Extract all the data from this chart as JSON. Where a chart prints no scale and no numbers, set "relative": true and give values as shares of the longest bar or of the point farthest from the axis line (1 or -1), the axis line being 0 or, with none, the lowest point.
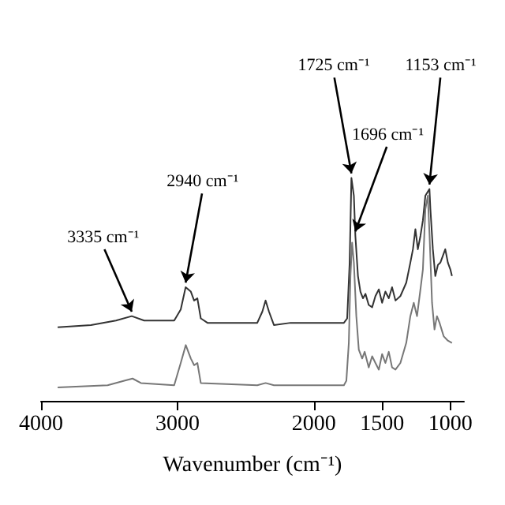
{
  "chart_data": {
    "type": "line",
    "relative": true,
    "xlabel": "Wavenumber (cm⁻¹)",
    "xlim": [
      4000,
      900
    ],
    "xticks": [
      4000,
      3000,
      2000,
      1500,
      1000
    ],
    "tick_labels": "x",
    "grid": false,
    "marker": "none",
    "line_style": "solid",
    "annotations": [
      {
        "text": "3335 cm⁻¹",
        "x": 3335,
        "y": 0.38
      },
      {
        "text": "2940 cm⁻¹",
        "x": 2940,
        "y": 0.51
      },
      {
        "text": "1725 cm⁻¹",
        "x": 1725,
        "y": 1
      },
      {
        "text": "1696 cm⁻¹",
        "x": 1696,
        "y": 0.74
      },
      {
        "text": "1153 cm⁻¹",
        "x": 1153,
        "y": 0.95
      }
    ],
    "series": [
      {
        "color": "#333333",
        "x": [
          3878,
          3634,
          3451,
          3335,
          3244,
          3024,
          2976,
          2940,
          2902,
          2878,
          2854,
          2829,
          2780,
          2415,
          2378,
          2354,
          2329,
          2293,
          2171,
          1780,
          1756,
          1738,
          1725,
          1707,
          1696,
          1677,
          1659,
          1640,
          1622,
          1598,
          1573,
          1549,
          1524,
          1500,
          1476,
          1451,
          1427,
          1402,
          1366,
          1323,
          1293,
          1274,
          1256,
          1238,
          1219,
          1201,
          1183,
          1153,
          1146,
          1128,
          1110,
          1091,
          1073,
          1055,
          1037,
          1018,
          1000,
          988
        ],
        "values": [
          0.33,
          0.34,
          0.36,
          0.38,
          0.36,
          0.36,
          0.41,
          0.51,
          0.49,
          0.45,
          0.46,
          0.37,
          0.35,
          0.35,
          0.4,
          0.45,
          0.4,
          0.34,
          0.35,
          0.35,
          0.37,
          0.62,
          1,
          0.92,
          0.74,
          0.56,
          0.49,
          0.46,
          0.48,
          0.43,
          0.42,
          0.47,
          0.5,
          0.44,
          0.49,
          0.46,
          0.51,
          0.45,
          0.47,
          0.53,
          0.62,
          0.68,
          0.77,
          0.68,
          0.74,
          0.81,
          0.92,
          0.95,
          0.86,
          0.68,
          0.56,
          0.61,
          0.62,
          0.65,
          0.68,
          0.62,
          0.59,
          0.56
        ]
      },
      {
        "color": "#777777",
        "x": [
          3878,
          3512,
          3390,
          3329,
          3268,
          3024,
          2976,
          2939,
          2902,
          2878,
          2854,
          2829,
          2415,
          2354,
          2293,
          1780,
          1762,
          1744,
          1732,
          1720,
          1707,
          1689,
          1671,
          1646,
          1628,
          1598,
          1573,
          1549,
          1524,
          1500,
          1476,
          1451,
          1427,
          1402,
          1366,
          1323,
          1293,
          1268,
          1244,
          1219,
          1201,
          1183,
          1165,
          1152,
          1134,
          1116,
          1098,
          1079,
          1049,
          1018,
          988
        ],
        "values": [
          0.06,
          0.07,
          0.09,
          0.1,
          0.08,
          0.07,
          0.17,
          0.25,
          0.19,
          0.16,
          0.17,
          0.08,
          0.07,
          0.08,
          0.07,
          0.07,
          0.09,
          0.26,
          0.56,
          0.71,
          0.62,
          0.38,
          0.23,
          0.19,
          0.22,
          0.15,
          0.2,
          0.17,
          0.14,
          0.21,
          0.17,
          0.22,
          0.15,
          0.14,
          0.17,
          0.26,
          0.38,
          0.44,
          0.38,
          0.5,
          0.59,
          0.86,
          0.92,
          0.74,
          0.44,
          0.32,
          0.38,
          0.35,
          0.29,
          0.27,
          0.26
        ]
      }
    ]
  }
}
